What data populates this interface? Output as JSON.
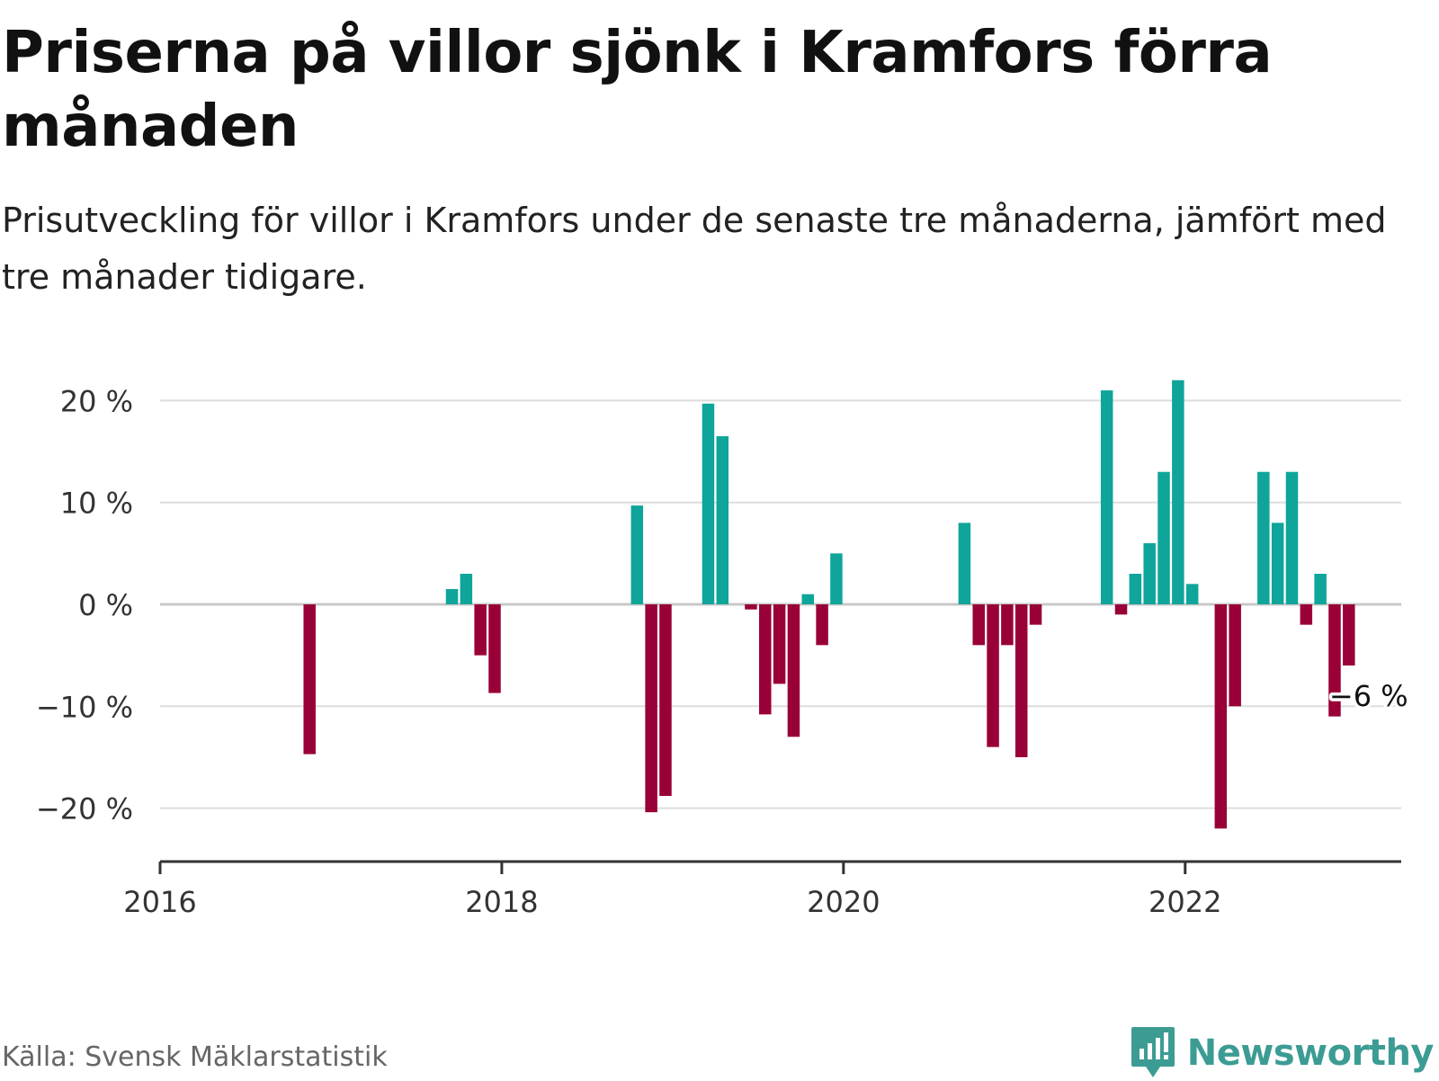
{
  "header": {
    "title": "Priserna på villor sjönk i Kramfors förra månaden",
    "subtitle": "Prisutveckling för villor i Kramfors under de senaste tre månaderna, jämfört med tre månader tidigare."
  },
  "footer": {
    "source": "Källa: Svensk Mäklarstatistik",
    "brand": "Newsworthy"
  },
  "colors": {
    "positive": "#0fa59a",
    "negative": "#990038",
    "grid": "#dddddd",
    "axis": "#333333",
    "brand": "#3c9c94"
  },
  "chart_data": {
    "type": "bar",
    "xlabel": "",
    "ylabel": "",
    "y_tick_values": [
      20,
      10,
      0,
      -10,
      -20
    ],
    "y_tick_labels": [
      "20 %",
      "10 %",
      "0 %",
      "−10 %",
      "−20 %"
    ],
    "x_tick_values": [
      "2016-01",
      "2018-01",
      "2020-01",
      "2022-01"
    ],
    "x_tick_labels": [
      "2016",
      "2018",
      "2020",
      "2022"
    ],
    "x_range": [
      "2016-01",
      "2023-04"
    ],
    "ylim": [
      -24,
      22
    ],
    "grid": true,
    "annotation": {
      "month": "2022-12",
      "value": -6,
      "label": "−6 %"
    },
    "series": [
      {
        "points": [
          [
            "2016-11",
            -14.7
          ],
          [
            "2017-09",
            1.5
          ],
          [
            "2017-10",
            3
          ],
          [
            "2017-11",
            -5
          ],
          [
            "2017-12",
            -8.7
          ],
          [
            "2018-10",
            9.7
          ],
          [
            "2018-11",
            -20.4
          ],
          [
            "2018-12",
            -18.8
          ],
          [
            "2019-03",
            19.7
          ],
          [
            "2019-04",
            16.5
          ],
          [
            "2019-06",
            -0.5
          ],
          [
            "2019-07",
            -10.8
          ],
          [
            "2019-08",
            -7.8
          ],
          [
            "2019-09",
            -13
          ],
          [
            "2019-10",
            1
          ],
          [
            "2019-11",
            -4
          ],
          [
            "2019-12",
            5
          ],
          [
            "2020-09",
            8
          ],
          [
            "2020-10",
            -4
          ],
          [
            "2020-11",
            -14
          ],
          [
            "2020-12",
            -4
          ],
          [
            "2021-01",
            -15
          ],
          [
            "2021-02",
            -2
          ],
          [
            "2021-07",
            21
          ],
          [
            "2021-08",
            -1
          ],
          [
            "2021-09",
            3
          ],
          [
            "2021-10",
            6
          ],
          [
            "2021-11",
            13
          ],
          [
            "2021-12",
            22
          ],
          [
            "2022-01",
            2
          ],
          [
            "2022-03",
            -22
          ],
          [
            "2022-04",
            -10
          ],
          [
            "2022-06",
            13
          ],
          [
            "2022-07",
            8
          ],
          [
            "2022-08",
            13
          ],
          [
            "2022-09",
            -2
          ],
          [
            "2022-10",
            3
          ],
          [
            "2022-11",
            -11
          ],
          [
            "2022-12",
            -6
          ]
        ]
      }
    ]
  }
}
